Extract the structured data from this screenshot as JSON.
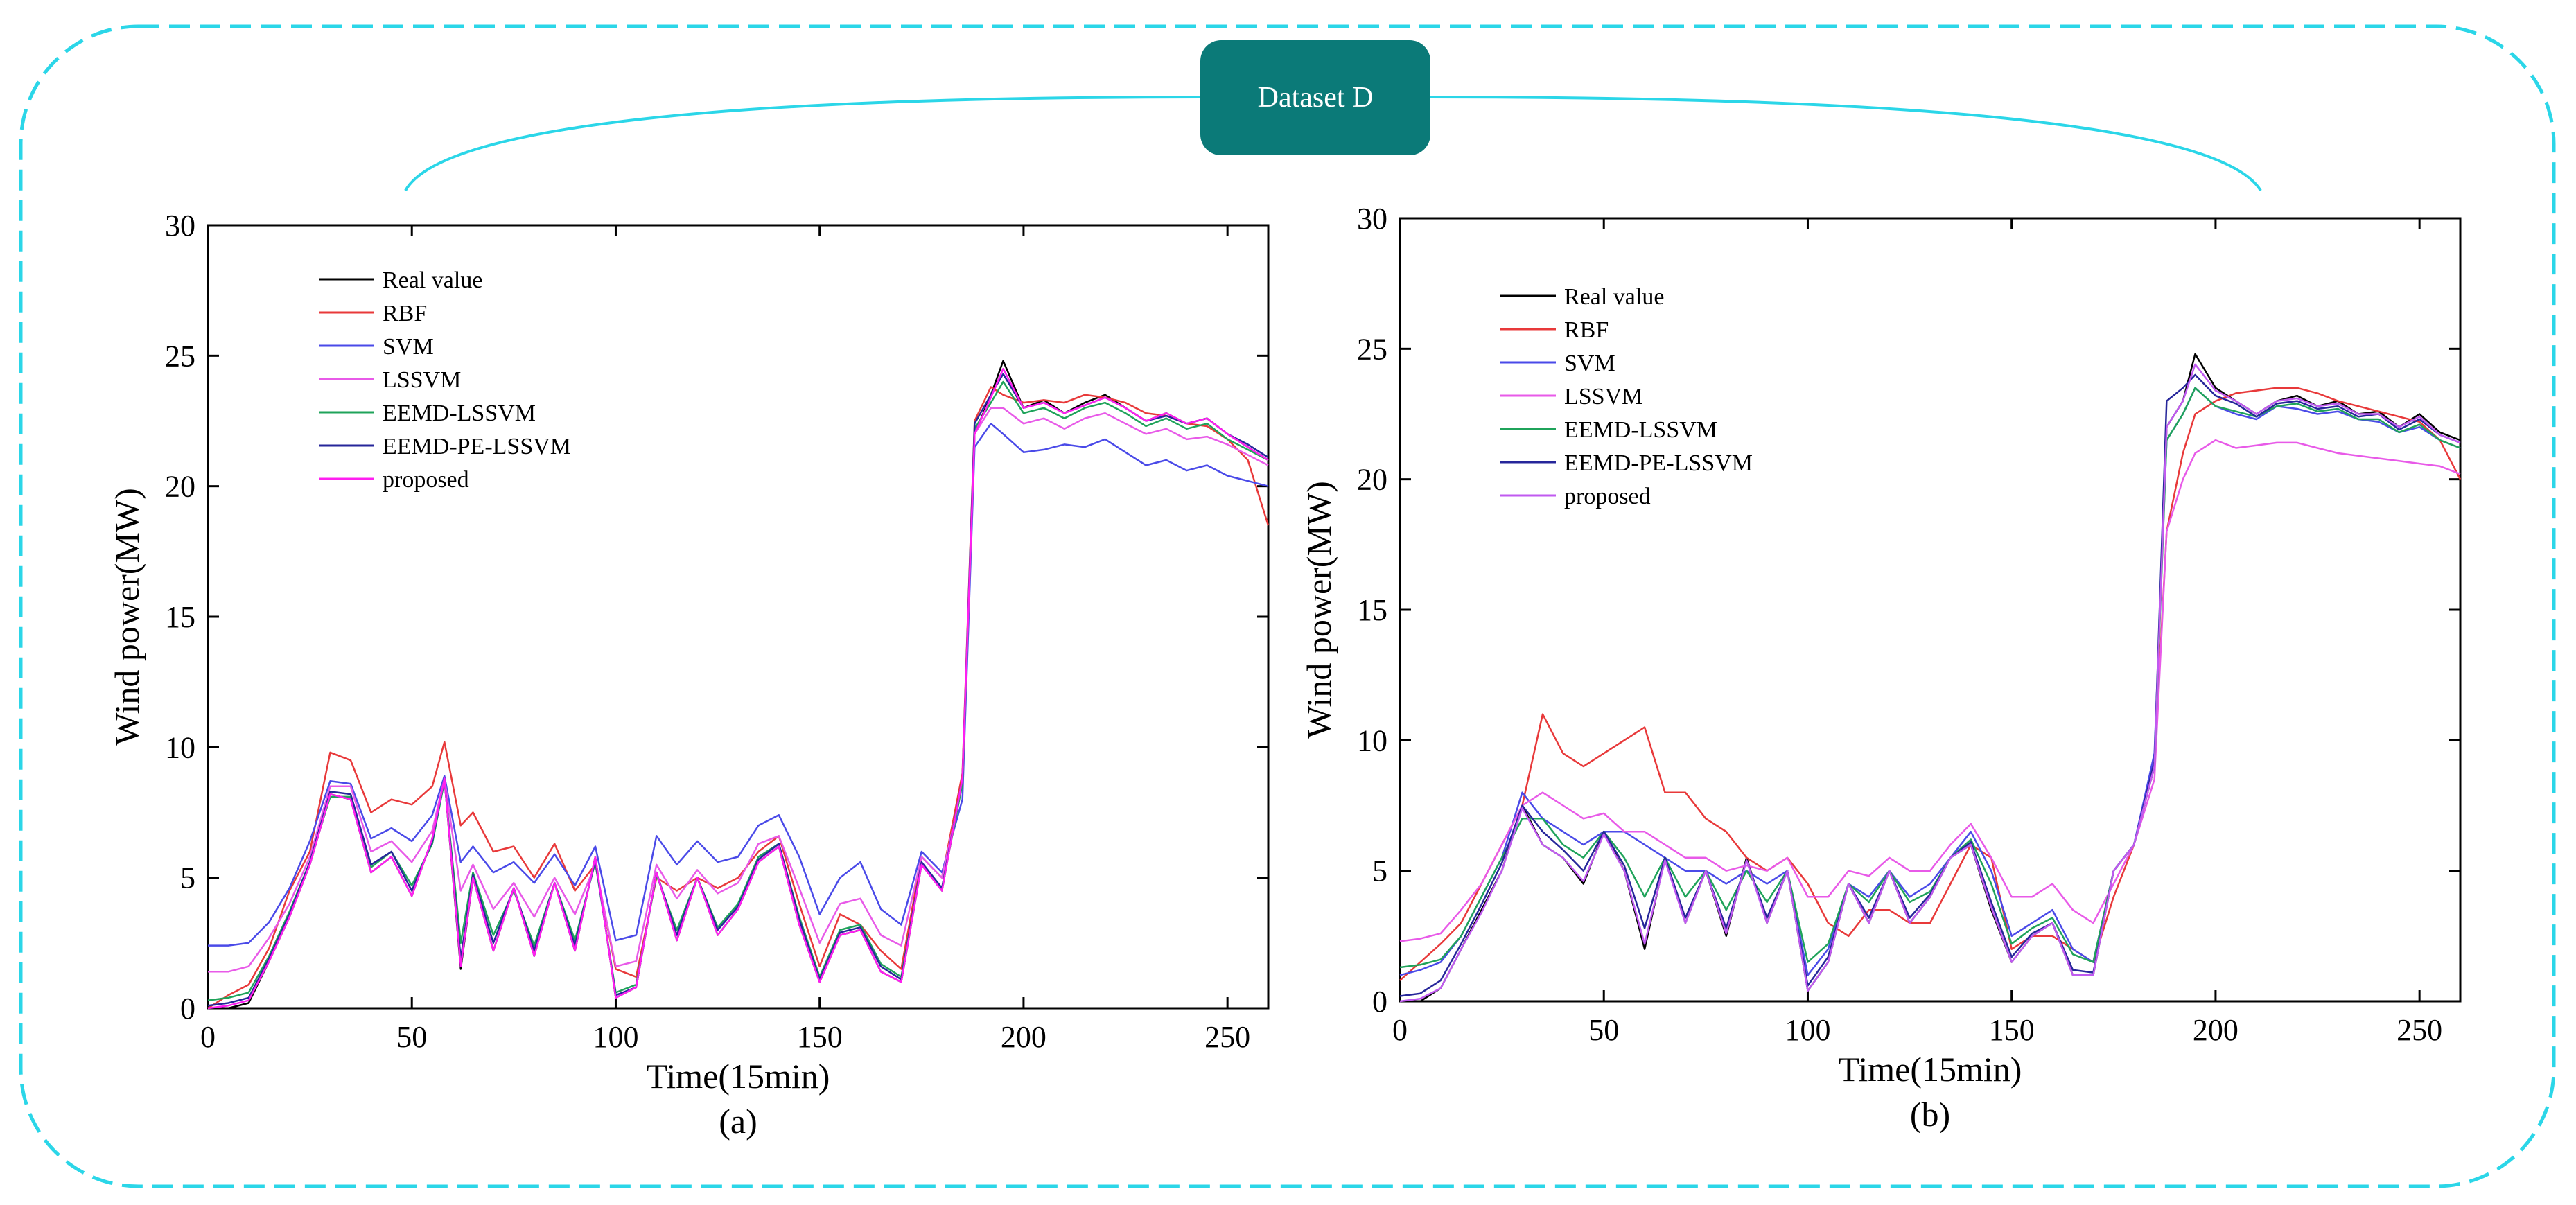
{
  "title": "Dataset D",
  "chart_data": [
    {
      "type": "line",
      "caption": "(a)",
      "xlabel": "Time(15min)",
      "ylabel": "Wind power(MW)",
      "xlim": [
        0,
        260
      ],
      "ylim": [
        0,
        30
      ],
      "xticks": [
        0,
        50,
        100,
        150,
        200,
        250
      ],
      "yticks": [
        0,
        5,
        10,
        15,
        20,
        25,
        30
      ],
      "legend_position": "top-left",
      "x": [
        0,
        5,
        10,
        15,
        20,
        25,
        30,
        35,
        40,
        45,
        50,
        55,
        58,
        62,
        65,
        70,
        75,
        80,
        85,
        90,
        95,
        100,
        105,
        110,
        115,
        120,
        125,
        130,
        135,
        140,
        145,
        150,
        155,
        160,
        165,
        170,
        175,
        180,
        185,
        188,
        192,
        195,
        200,
        205,
        210,
        215,
        220,
        225,
        230,
        235,
        240,
        245,
        250,
        255,
        260
      ],
      "series": [
        {
          "name": "Real value",
          "color": "#000000",
          "values": [
            0,
            0,
            0.2,
            1.8,
            3.5,
            5.5,
            8.2,
            8.0,
            5.2,
            5.8,
            4.3,
            6.5,
            8.8,
            1.5,
            5.0,
            2.2,
            4.6,
            2.0,
            4.8,
            2.2,
            5.8,
            0.4,
            0.8,
            5.2,
            2.6,
            5.0,
            2.8,
            3.8,
            5.6,
            6.2,
            3.2,
            1.0,
            2.8,
            3.0,
            1.4,
            1.0,
            5.5,
            4.5,
            8.8,
            22.0,
            23.5,
            24.8,
            23.0,
            23.3,
            22.8,
            23.2,
            23.5,
            23.0,
            22.5,
            22.8,
            22.4,
            22.6,
            22.0,
            21.5,
            21.0
          ]
        },
        {
          "name": "RBF",
          "color": "#e8393a",
          "values": [
            0,
            0.5,
            0.9,
            2.3,
            4.5,
            6.0,
            9.8,
            9.5,
            7.5,
            8.0,
            7.8,
            8.5,
            10.2,
            7.0,
            7.5,
            6.0,
            6.2,
            5.0,
            6.3,
            4.5,
            5.5,
            1.5,
            1.2,
            5.0,
            4.5,
            5.0,
            4.6,
            5.0,
            6.0,
            6.6,
            4.0,
            1.6,
            3.6,
            3.2,
            2.2,
            1.5,
            5.8,
            5.0,
            9.0,
            22.5,
            23.8,
            23.5,
            23.2,
            23.3,
            23.2,
            23.5,
            23.4,
            23.2,
            22.8,
            22.7,
            22.4,
            22.3,
            21.8,
            21.0,
            18.5
          ]
        },
        {
          "name": "SVM",
          "color": "#4a4ae8",
          "values": [
            2.4,
            2.4,
            2.5,
            3.3,
            4.6,
            6.4,
            8.7,
            8.6,
            6.5,
            6.9,
            6.4,
            7.4,
            8.9,
            5.6,
            6.2,
            5.2,
            5.6,
            4.8,
            5.9,
            4.7,
            6.2,
            2.6,
            2.8,
            6.6,
            5.5,
            6.4,
            5.6,
            5.8,
            7.0,
            7.4,
            5.8,
            3.6,
            5.0,
            5.6,
            3.8,
            3.2,
            6.0,
            5.2,
            8.0,
            21.5,
            22.4,
            22.0,
            21.3,
            21.4,
            21.6,
            21.5,
            21.8,
            21.3,
            20.8,
            21.0,
            20.6,
            20.8,
            20.4,
            20.2,
            20.0
          ]
        },
        {
          "name": "LSSVM",
          "color": "#e85ae8",
          "values": [
            1.4,
            1.4,
            1.6,
            2.7,
            4.0,
            5.8,
            8.5,
            8.5,
            6.0,
            6.4,
            5.6,
            6.8,
            8.8,
            4.5,
            5.5,
            3.8,
            4.8,
            3.5,
            5.0,
            3.6,
            5.5,
            1.6,
            1.8,
            5.5,
            4.2,
            5.3,
            4.4,
            4.8,
            6.3,
            6.6,
            4.6,
            2.5,
            4.0,
            4.2,
            2.8,
            2.4,
            5.8,
            5.0,
            8.6,
            22.0,
            23.0,
            23.0,
            22.4,
            22.6,
            22.2,
            22.6,
            22.8,
            22.4,
            22.0,
            22.2,
            21.8,
            21.9,
            21.6,
            21.2,
            20.8
          ]
        },
        {
          "name": "EEMD-LSSVM",
          "color": "#1fa35a",
          "values": [
            0.3,
            0.4,
            0.6,
            2.0,
            3.7,
            5.6,
            8.1,
            8.1,
            5.4,
            6.0,
            4.7,
            6.3,
            8.7,
            2.5,
            5.2,
            2.8,
            4.5,
            2.4,
            4.8,
            2.6,
            5.6,
            0.6,
            0.9,
            5.1,
            3.0,
            5.0,
            3.1,
            4.0,
            5.8,
            6.3,
            3.5,
            1.2,
            3.0,
            3.2,
            1.7,
            1.2,
            5.5,
            4.6,
            8.6,
            22.2,
            23.2,
            24.0,
            22.8,
            23.0,
            22.6,
            23.0,
            23.2,
            22.8,
            22.3,
            22.6,
            22.2,
            22.4,
            21.8,
            21.4,
            21.0
          ]
        },
        {
          "name": "EEMD-PE-LSSVM",
          "color": "#26269a",
          "values": [
            0.1,
            0.2,
            0.4,
            1.9,
            3.6,
            5.6,
            8.3,
            8.2,
            5.5,
            6.0,
            4.5,
            6.4,
            8.8,
            1.9,
            5.1,
            2.5,
            4.6,
            2.2,
            4.8,
            2.4,
            5.7,
            0.5,
            0.8,
            5.2,
            2.8,
            5.0,
            3.0,
            3.9,
            5.7,
            6.3,
            3.4,
            1.1,
            2.9,
            3.1,
            1.6,
            1.1,
            5.6,
            4.6,
            8.8,
            22.4,
            23.5,
            24.3,
            23.0,
            23.2,
            22.8,
            23.1,
            23.4,
            23.0,
            22.5,
            22.7,
            22.4,
            22.6,
            22.0,
            21.6,
            21.1
          ]
        },
        {
          "name": "proposed",
          "color": "#ff1ff0",
          "values": [
            0.0,
            0.1,
            0.3,
            1.8,
            3.5,
            5.5,
            8.2,
            8.0,
            5.2,
            5.8,
            4.3,
            6.5,
            8.8,
            1.6,
            5.0,
            2.2,
            4.6,
            2.0,
            4.8,
            2.2,
            5.8,
            0.4,
            0.8,
            5.2,
            2.6,
            5.0,
            2.8,
            3.8,
            5.6,
            6.2,
            3.2,
            1.0,
            2.8,
            3.0,
            1.4,
            1.0,
            5.5,
            4.5,
            8.8,
            22.0,
            23.4,
            24.5,
            23.0,
            23.2,
            22.8,
            23.1,
            23.4,
            23.0,
            22.5,
            22.8,
            22.4,
            22.6,
            22.0,
            21.5,
            21.0
          ]
        }
      ]
    },
    {
      "type": "line",
      "caption": "(b)",
      "xlabel": "Time(15min)",
      "ylabel": "Wind power(MW)",
      "xlim": [
        0,
        260
      ],
      "ylim": [
        0,
        30
      ],
      "xticks": [
        0,
        50,
        100,
        150,
        200,
        250
      ],
      "yticks": [
        0,
        5,
        10,
        15,
        20,
        25,
        30
      ],
      "legend_position": "top-left",
      "x": [
        0,
        5,
        10,
        15,
        20,
        25,
        30,
        35,
        40,
        45,
        50,
        55,
        60,
        65,
        70,
        75,
        80,
        85,
        90,
        95,
        100,
        105,
        110,
        115,
        120,
        125,
        130,
        135,
        140,
        145,
        150,
        155,
        160,
        165,
        170,
        175,
        180,
        185,
        188,
        192,
        195,
        200,
        205,
        210,
        215,
        220,
        225,
        230,
        235,
        240,
        245,
        250,
        255,
        260
      ],
      "series": [
        {
          "name": "Real value",
          "color": "#000000",
          "values": [
            0,
            0,
            0.5,
            2.0,
            3.5,
            5.0,
            7.5,
            6.0,
            5.5,
            4.5,
            6.5,
            5.0,
            2.0,
            5.5,
            3.0,
            5.0,
            2.5,
            5.5,
            3.0,
            5.0,
            0.4,
            1.5,
            4.5,
            3.0,
            5.0,
            3.0,
            4.0,
            5.5,
            6.0,
            3.5,
            1.5,
            2.5,
            3.0,
            1.0,
            1.0,
            5.0,
            6.0,
            9.0,
            22.0,
            23.0,
            24.8,
            23.5,
            23.0,
            22.5,
            23.0,
            23.2,
            22.8,
            23.0,
            22.5,
            22.6,
            22.0,
            22.5,
            21.8,
            21.5
          ]
        },
        {
          "name": "RBF",
          "color": "#e8393a",
          "values": [
            0.8,
            1.5,
            2.2,
            3.0,
            4.5,
            6.0,
            7.5,
            11.0,
            9.5,
            9.0,
            9.5,
            10.0,
            10.5,
            8.0,
            8.0,
            7.0,
            6.5,
            5.5,
            5.0,
            5.5,
            4.5,
            3.0,
            2.5,
            3.5,
            3.5,
            3.0,
            3.0,
            4.5,
            6.0,
            5.5,
            2.0,
            2.5,
            2.5,
            2.0,
            1.5,
            4.0,
            6.0,
            9.0,
            18.0,
            21.0,
            22.5,
            23.0,
            23.3,
            23.4,
            23.5,
            23.5,
            23.3,
            23.0,
            22.8,
            22.6,
            22.4,
            22.2,
            21.5,
            20.0
          ]
        },
        {
          "name": "SVM",
          "color": "#4a4ae8",
          "values": [
            1.0,
            1.2,
            1.5,
            2.5,
            4.0,
            5.5,
            8.0,
            7.0,
            6.5,
            6.0,
            6.5,
            6.5,
            6.0,
            5.5,
            5.0,
            5.0,
            4.5,
            5.0,
            4.5,
            5.0,
            1.0,
            2.0,
            4.5,
            4.0,
            5.0,
            4.0,
            4.5,
            5.5,
            6.5,
            5.0,
            2.5,
            3.0,
            3.5,
            2.0,
            1.5,
            5.0,
            6.0,
            9.5,
            21.5,
            22.5,
            23.5,
            22.8,
            22.5,
            22.3,
            22.8,
            22.7,
            22.5,
            22.6,
            22.3,
            22.2,
            21.8,
            22.0,
            21.5,
            21.2
          ]
        },
        {
          "name": "LSSVM",
          "color": "#e85ae8",
          "values": [
            2.3,
            2.4,
            2.6,
            3.5,
            4.5,
            6.0,
            7.5,
            8.0,
            7.5,
            7.0,
            7.2,
            6.5,
            6.5,
            6.0,
            5.5,
            5.5,
            5.0,
            5.2,
            5.0,
            5.5,
            4.0,
            4.0,
            5.0,
            4.8,
            5.5,
            5.0,
            5.0,
            6.0,
            6.8,
            5.5,
            4.0,
            4.0,
            4.5,
            3.5,
            3.0,
            4.5,
            6.0,
            8.5,
            18.0,
            20.0,
            21.0,
            21.5,
            21.2,
            21.3,
            21.4,
            21.4,
            21.2,
            21.0,
            20.9,
            20.8,
            20.7,
            20.6,
            20.5,
            20.2
          ]
        },
        {
          "name": "EEMD-LSSVM",
          "color": "#1fa35a",
          "values": [
            1.3,
            1.4,
            1.6,
            2.5,
            4.0,
            5.5,
            7.0,
            7.0,
            6.0,
            5.5,
            6.5,
            5.5,
            4.0,
            5.5,
            4.0,
            5.0,
            3.5,
            5.0,
            3.8,
            5.0,
            1.5,
            2.2,
            4.5,
            3.8,
            5.0,
            3.8,
            4.2,
            5.5,
            6.2,
            4.5,
            2.2,
            2.8,
            3.2,
            1.8,
            1.5,
            5.0,
            6.0,
            9.0,
            21.5,
            22.5,
            23.5,
            22.8,
            22.6,
            22.4,
            22.8,
            22.9,
            22.6,
            22.7,
            22.3,
            22.3,
            21.8,
            22.1,
            21.5,
            21.2
          ]
        },
        {
          "name": "EEMD-PE-LSSVM",
          "color": "#26269a",
          "values": [
            0.2,
            0.3,
            0.8,
            2.2,
            3.7,
            5.3,
            7.5,
            6.5,
            5.8,
            5.0,
            6.5,
            5.2,
            2.8,
            5.5,
            3.2,
            5.0,
            2.8,
            5.4,
            3.2,
            5.0,
            0.6,
            1.7,
            4.5,
            3.2,
            5.0,
            3.2,
            4.1,
            5.5,
            6.1,
            3.8,
            1.7,
            2.6,
            3.0,
            1.2,
            1.1,
            5.0,
            6.0,
            9.2,
            23.0,
            23.5,
            24.0,
            23.2,
            22.9,
            22.4,
            22.9,
            23.0,
            22.7,
            22.8,
            22.4,
            22.5,
            21.9,
            22.3,
            21.7,
            21.4
          ]
        },
        {
          "name": "proposed",
          "color": "#c05af0",
          "values": [
            0,
            0.1,
            0.5,
            2.0,
            3.4,
            5.0,
            7.4,
            6.0,
            5.5,
            4.6,
            6.4,
            5.0,
            2.2,
            5.4,
            3.0,
            5.0,
            2.6,
            5.4,
            3.0,
            5.0,
            0.4,
            1.5,
            4.5,
            3.0,
            5.0,
            3.0,
            4.0,
            5.5,
            6.0,
            3.6,
            1.5,
            2.5,
            3.0,
            1.0,
            1.0,
            5.0,
            6.0,
            9.0,
            22.0,
            23.0,
            24.4,
            23.4,
            23.0,
            22.5,
            23.0,
            23.1,
            22.8,
            22.9,
            22.5,
            22.5,
            22.0,
            22.4,
            21.7,
            21.4
          ]
        }
      ]
    }
  ]
}
